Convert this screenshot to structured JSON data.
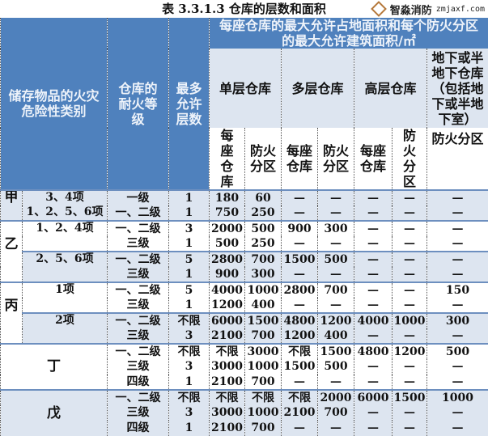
{
  "title": "表 3.3.1.3 仓库的层数和面积",
  "header": {
    "category": "储存物品的火灾危险性类别",
    "fire_rating": "仓库的耐火等级",
    "max_floors": "最多允许层数",
    "area_group": "每座仓库的最大允许占地面积和每个防火分区的最大允许建筑面积/㎡",
    "single": "单层仓库",
    "multi": "多层仓库",
    "high": "高层仓库",
    "underground": "地下或半地下仓库（包括地下或半地下室）",
    "per_building": "每座仓库",
    "per_zone": "防火分区",
    "ug_zone": "防火分区"
  },
  "colors": {
    "header_blue": "#4f81bd",
    "row_light": "#dde5f0"
  },
  "groups": [
    {
      "class": "甲",
      "blocks": [
        {
          "items": [
            "3、4项",
            "1、2、5、6项"
          ],
          "shade": "light",
          "rows": [
            [
              "一级",
              "1",
              "180",
              "60",
              "—",
              "—",
              "—",
              "—",
              "—"
            ],
            [
              "一、二级",
              "1",
              "750",
              "250",
              "—",
              "—",
              "—",
              "—",
              "—"
            ]
          ]
        }
      ]
    },
    {
      "class": "乙",
      "blocks": [
        {
          "items": [
            "1、2、4项"
          ],
          "shade": "white",
          "rows": [
            [
              "一、二级",
              "3",
              "2000",
              "500",
              "900",
              "300",
              "—",
              "—",
              "—"
            ],
            [
              "三级",
              "1",
              "500",
              "250",
              "—",
              "—",
              "—",
              "—",
              "—"
            ]
          ]
        },
        {
          "items": [
            "2、5、6项"
          ],
          "shade": "light",
          "rows": [
            [
              "一、二级",
              "5",
              "2800",
              "700",
              "1500",
              "500",
              "—",
              "—",
              "—"
            ],
            [
              "三级",
              "1",
              "900",
              "300",
              "—",
              "—",
              "—",
              "—",
              "—"
            ]
          ]
        }
      ]
    },
    {
      "class": "丙",
      "blocks": [
        {
          "items": [
            "1项"
          ],
          "shade": "white",
          "rows": [
            [
              "一、二级",
              "5",
              "4000",
              "1000",
              "2800",
              "700",
              "—",
              "—",
              "150"
            ],
            [
              "三级",
              "1",
              "1200",
              "400",
              "—",
              "—",
              "—",
              "—",
              "—"
            ]
          ]
        },
        {
          "items": [
            "2项"
          ],
          "shade": "light",
          "rows": [
            [
              "一、二级",
              "不限",
              "6000",
              "1500",
              "4800",
              "1200",
              "4000",
              "1000",
              "300"
            ],
            [
              "三级",
              "3",
              "2100",
              "700",
              "1200",
              "400",
              "—",
              "—",
              "—"
            ]
          ]
        }
      ]
    },
    {
      "class": "丁",
      "merged": true,
      "blocks": [
        {
          "items": [],
          "shade": "white",
          "rows": [
            [
              "一、二级",
              "不限",
              "不限",
              "3000",
              "不限",
              "1500",
              "4800",
              "1200",
              "500"
            ],
            [
              "三级",
              "3",
              "3000",
              "1000",
              "1500",
              "500",
              "—",
              "—",
              "—"
            ],
            [
              "四级",
              "1",
              "2100",
              "700",
              "—",
              "—",
              "—",
              "—",
              "—"
            ]
          ]
        }
      ]
    },
    {
      "class": "戊",
      "merged": true,
      "blocks": [
        {
          "items": [],
          "shade": "light",
          "rows": [
            [
              "一、二级",
              "不限",
              "不限",
              "不限",
              "不限",
              "2000",
              "6000",
              "1500",
              "1000"
            ],
            [
              "三级",
              "3",
              "3000",
              "1000",
              "2100",
              "700",
              "—",
              "—",
              "—"
            ],
            [
              "四级",
              "1",
              "2100",
              "700",
              "—",
              "—",
              "—",
              "—",
              "—"
            ]
          ]
        }
      ]
    }
  ],
  "watermark": {
    "name": "智淼消防",
    "url": "zmjaxf.com"
  }
}
